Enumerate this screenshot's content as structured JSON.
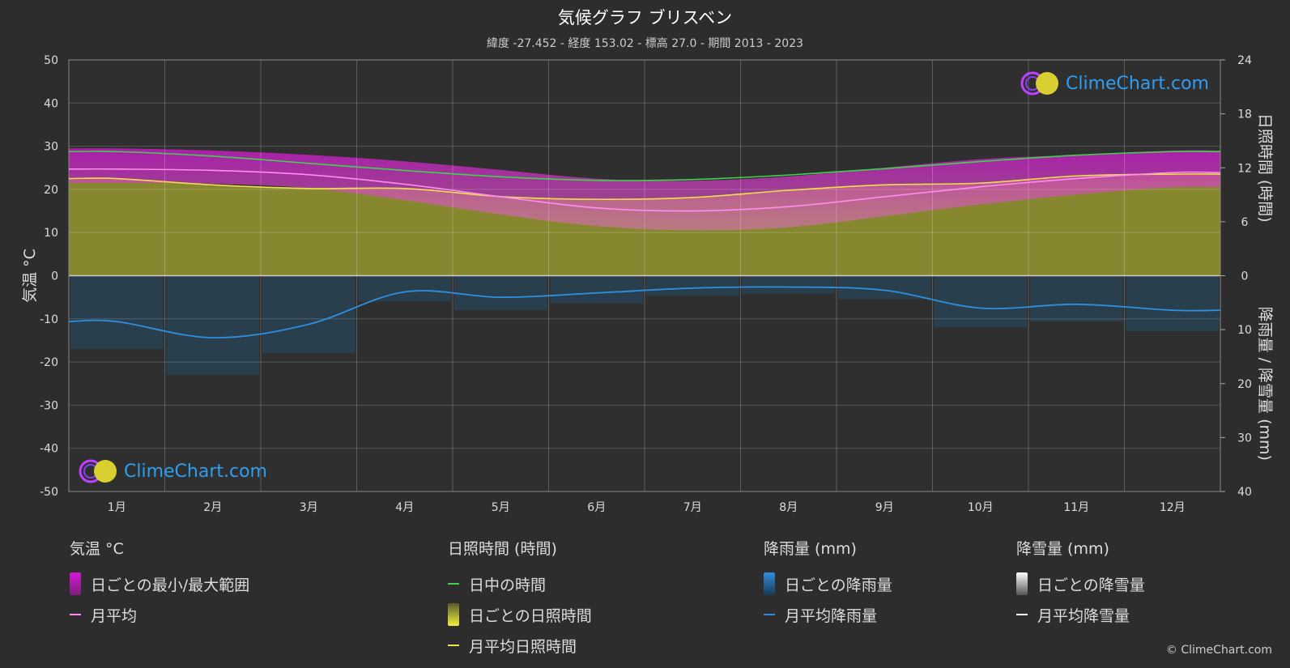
{
  "header": {
    "title": "気候グラフ ブリスベン",
    "subtitle": "緯度 -27.452 - 経度 153.02 - 標高 27.0 - 期間 2013 - 2023"
  },
  "brand": {
    "logo_text": "ClimeChart.com",
    "copyright": "© ClimeChart.com"
  },
  "colors": {
    "background": "#2d2d2d",
    "daylight": "#3fd34a",
    "sunshine_fill": "#a6a632",
    "sunshine_avg": "#f0e04a",
    "temp_range": "#d418d4",
    "temp_avg": "#ff8cf0",
    "rain_avg": "#2f8fde",
    "rain_bars": "#1f5f8a",
    "snow_avg": "#ffffff"
  },
  "chart_data": {
    "type": "line",
    "categories": [
      "1月",
      "2月",
      "3月",
      "4月",
      "5月",
      "6月",
      "7月",
      "8月",
      "9月",
      "10月",
      "11月",
      "12月"
    ],
    "left_axis": {
      "label": "気温 °C",
      "range": [
        -50,
        50
      ],
      "ticks": [
        "50",
        "40",
        "30",
        "20",
        "10",
        "0",
        "-10",
        "-20",
        "-30",
        "-40",
        "-50"
      ]
    },
    "right_axis_top": {
      "label": "日照時間 (時間)",
      "range": [
        0,
        24
      ],
      "ticks": [
        "24",
        "18",
        "12",
        "6",
        "0"
      ]
    },
    "right_axis_bottom": {
      "label": "降雨量 / 降雪量 (mm)",
      "range": [
        0,
        40
      ],
      "ticks": [
        "10",
        "20",
        "30",
        "40"
      ]
    },
    "series": [
      {
        "name": "日中の時間",
        "axis": "sunshine_hours",
        "values": [
          13.8,
          13.3,
          12.5,
          11.7,
          11.0,
          10.6,
          10.7,
          11.2,
          11.9,
          12.7,
          13.4,
          13.8
        ]
      },
      {
        "name": "月平均日照時間",
        "axis": "sunshine_hours",
        "values": [
          10.8,
          10.1,
          9.7,
          9.7,
          8.8,
          8.5,
          8.7,
          9.5,
          10.1,
          10.3,
          11.1,
          11.3
        ]
      },
      {
        "name": "月平均",
        "axis": "temperature_c",
        "values": [
          24.7,
          24.4,
          23.4,
          21.2,
          18.3,
          15.7,
          15.0,
          16.0,
          18.3,
          20.6,
          22.5,
          23.9
        ]
      },
      {
        "name": "日ごとの最小/最大範囲",
        "axis": "temperature_c",
        "min": [
          21.5,
          21.3,
          20.3,
          17.5,
          14.2,
          11.5,
          10.5,
          11.2,
          13.8,
          16.5,
          18.8,
          20.5
        ],
        "max": [
          29.5,
          29.0,
          28.0,
          26.5,
          24.5,
          22.5,
          22.0,
          23.0,
          25.0,
          27.0,
          28.0,
          29.0
        ]
      },
      {
        "name": "月平均降雨量",
        "axis": "rain_mm",
        "values": [
          8.5,
          11.5,
          9.0,
          3.0,
          4.0,
          3.2,
          2.3,
          2.1,
          2.7,
          6.0,
          5.3,
          6.4
        ]
      },
      {
        "name": "月平均降雪量",
        "axis": "snow_mm",
        "values": [
          0,
          0,
          0,
          0,
          0,
          0,
          0,
          0,
          0,
          0,
          0,
          0
        ]
      }
    ],
    "grid": true
  },
  "legend": {
    "temperature": {
      "heading": "気温 °C",
      "items": [
        "日ごとの最小/最大範囲",
        "月平均"
      ]
    },
    "sunshine": {
      "heading": "日照時間 (時間)",
      "items": [
        "日中の時間",
        "日ごとの日照時間",
        "月平均日照時間"
      ]
    },
    "rain": {
      "heading": "降雨量 (mm)",
      "items": [
        "日ごとの降雨量",
        "月平均降雨量"
      ]
    },
    "snow": {
      "heading": "降雪量 (mm)",
      "items": [
        "日ごとの降雪量",
        "月平均降雪量"
      ]
    }
  }
}
